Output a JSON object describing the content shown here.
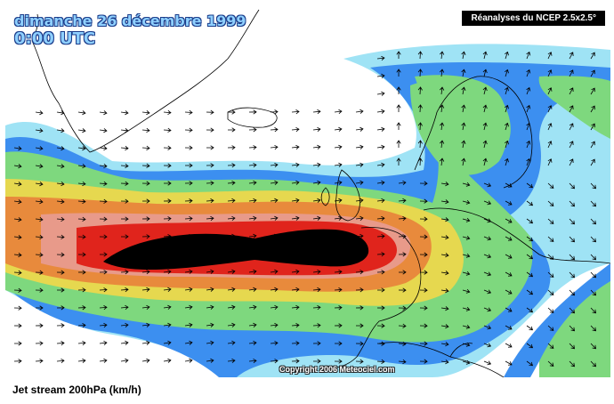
{
  "map": {
    "date_label": "dimanche 26 décembre 1999",
    "time_label": "0:00 UTC",
    "source_label": "Réanalyses du NCEP 2.5x2.5°",
    "copyright": "Copyright 2006 Meteociel.com",
    "caption": "Jet stream 200hPa (km/h)",
    "colors": {
      "ocean_background": "#ffffff",
      "band_lightblue": "#9fe3f5",
      "band_blue": "#3c8ff0",
      "band_green": "#7ed87e",
      "band_yellow": "#e6d84f",
      "band_orange": "#e88a3c",
      "band_red": "#e0241c",
      "band_black": "#000000",
      "coastline": "#000000",
      "arrows": "#000000"
    },
    "features": [
      "jet-stream-core",
      "wind-direction-arrows",
      "coastlines"
    ]
  }
}
